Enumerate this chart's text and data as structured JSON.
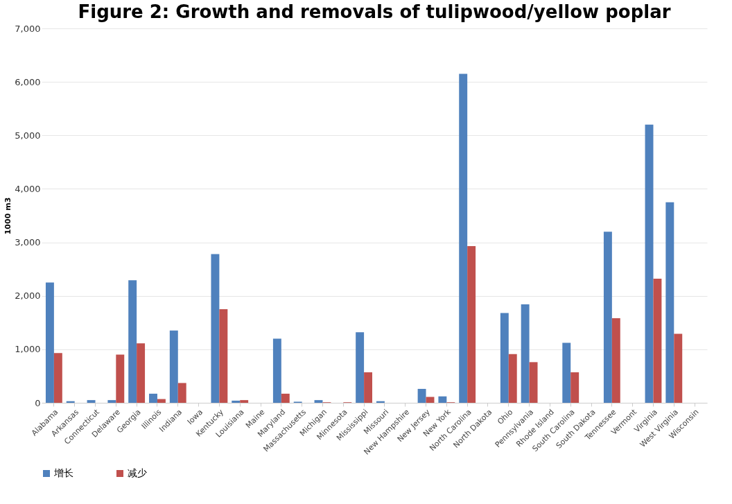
{
  "chart_data": {
    "type": "bar",
    "title": "Figure 2: Growth and removals of tulipwood/yellow poplar",
    "ylabel": "1000 m3",
    "categories": [
      "Alabama",
      "Arkansas",
      "Connecticut",
      "Delaware",
      "Georgia",
      "Illinois",
      "Indiana",
      "Iowa",
      "Kentucky",
      "Louisiana",
      "Maine",
      "Maryland",
      "Massachusetts",
      "Michigan",
      "Minnesota",
      "Mississippi",
      "Missouri",
      "New Hampshire",
      "New Jersey",
      "New York",
      "North Carolina",
      "North Dakota",
      "Ohio",
      "Pennsylvania",
      "Rhode Island",
      "South Carolina",
      "South Dakota",
      "Tennessee",
      "Vermont",
      "Virginia",
      "West Virginia",
      "Wisconsin"
    ],
    "series": [
      {
        "name": "增长",
        "color": "#4f81bd",
        "values": [
          2250,
          30,
          50,
          50,
          2290,
          170,
          1350,
          0,
          2780,
          40,
          0,
          1200,
          20,
          50,
          0,
          1320,
          30,
          0,
          260,
          120,
          6150,
          0,
          1680,
          1840,
          0,
          1120,
          0,
          3200,
          0,
          5200,
          3750,
          0
        ]
      },
      {
        "name": "减少",
        "color": "#c0504d",
        "values": [
          930,
          0,
          0,
          900,
          1110,
          70,
          370,
          0,
          1750,
          50,
          0,
          170,
          0,
          10,
          10,
          570,
          0,
          0,
          110,
          10,
          2930,
          0,
          910,
          760,
          0,
          570,
          0,
          1580,
          0,
          2320,
          1290,
          0
        ]
      }
    ],
    "ylim": [
      0,
      7000
    ],
    "yticks": [
      0,
      {
        "value": 1000,
        "label": "1,000"
      },
      {
        "value": 2000,
        "label": "2,000"
      },
      {
        "value": 3000,
        "label": "3,000"
      },
      {
        "value": 4000,
        "label": "4,000"
      },
      {
        "value": 5000,
        "label": "5,000"
      },
      {
        "value": 6000,
        "label": "6,000"
      },
      {
        "value": 7000,
        "label": "7,000"
      }
    ],
    "grid": "y",
    "legend": "bottom"
  }
}
